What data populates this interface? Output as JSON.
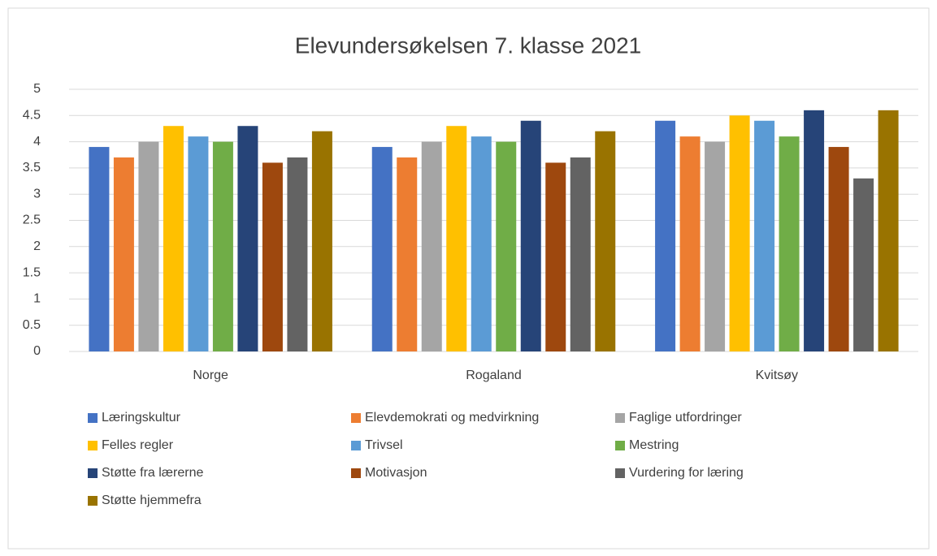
{
  "chart_data": {
    "type": "bar",
    "title": "Elevundersøkelsen 7. klasse 2021",
    "categories": [
      "Norge",
      "Rogaland",
      "Kvitsøy"
    ],
    "series": [
      {
        "name": "Læringskultur",
        "color": "#4472c4",
        "values": [
          3.9,
          3.9,
          4.4
        ]
      },
      {
        "name": "Elevdemokrati og medvirkning",
        "color": "#ed7d31",
        "values": [
          3.7,
          3.7,
          4.1
        ]
      },
      {
        "name": "Faglige utfordringer",
        "color": "#a5a5a5",
        "values": [
          4.0,
          4.0,
          4.0
        ]
      },
      {
        "name": "Felles regler",
        "color": "#ffc000",
        "values": [
          4.3,
          4.3,
          4.5
        ]
      },
      {
        "name": "Trivsel",
        "color": "#5b9bd5",
        "values": [
          4.1,
          4.1,
          4.4
        ]
      },
      {
        "name": "Mestring",
        "color": "#70ad47",
        "values": [
          4.0,
          4.0,
          4.1
        ]
      },
      {
        "name": "Støtte fra lærerne",
        "color": "#264478",
        "values": [
          4.3,
          4.4,
          4.6
        ]
      },
      {
        "name": "Motivasjon",
        "color": "#9e480e",
        "values": [
          3.6,
          3.6,
          3.9
        ]
      },
      {
        "name": "Vurdering for læring",
        "color": "#636363",
        "values": [
          3.7,
          3.7,
          3.3
        ]
      },
      {
        "name": "Støtte hjemmefra",
        "color": "#997300",
        "values": [
          4.2,
          4.2,
          4.6
        ]
      }
    ],
    "ylim": [
      0,
      5
    ],
    "yticks": [
      0,
      0.5,
      1,
      1.5,
      2,
      2.5,
      3,
      3.5,
      4,
      4.5,
      5
    ],
    "grid": true,
    "legend": "bottom"
  }
}
